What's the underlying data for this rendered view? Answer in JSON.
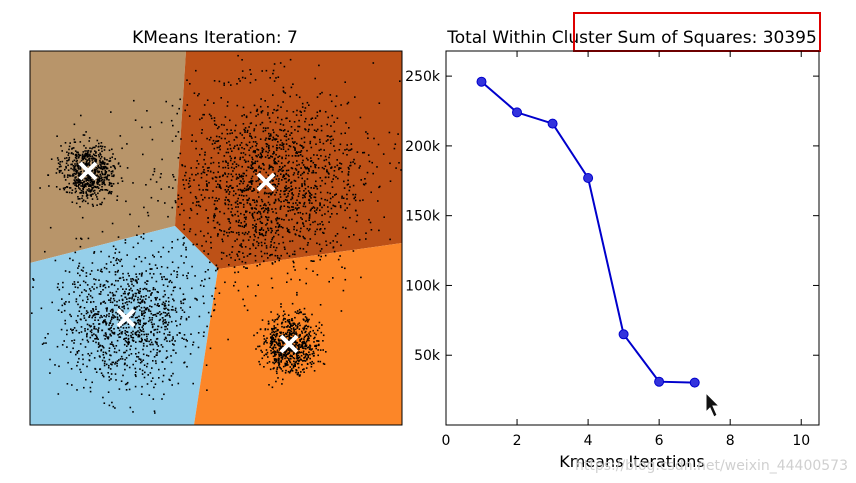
{
  "chart_data": [
    {
      "type": "scatter",
      "title": "KMeans Iteration: 7",
      "regions": [
        {
          "name": "top-left",
          "color": "#b8956a"
        },
        {
          "name": "top-right",
          "color": "#bd5117"
        },
        {
          "name": "bottom-left",
          "color": "#95cfea"
        },
        {
          "name": "bottom-right",
          "color": "#fc8628"
        }
      ],
      "clusters": [
        {
          "centroid_marker": "x",
          "spread": "tight",
          "count": 700
        },
        {
          "centroid_marker": "x",
          "spread": "wide",
          "count": 1700
        },
        {
          "centroid_marker": "x",
          "spread": "wide",
          "count": 1100
        },
        {
          "centroid_marker": "x",
          "spread": "tight",
          "count": 700
        }
      ],
      "point_color": "#000000",
      "centroid_color": "#ffffff",
      "axes_ticks": "none"
    },
    {
      "type": "line",
      "title": "Total Within Cluster Sum of Squares: 30395",
      "xlabel": "Kmeans Iterations",
      "ylabel": "",
      "xlim": [
        0,
        10.5
      ],
      "ylim": [
        0,
        268000
      ],
      "xticks": [
        {
          "value": 0,
          "label": "0"
        },
        {
          "value": 2,
          "label": "2"
        },
        {
          "value": 4,
          "label": "4"
        },
        {
          "value": 6,
          "label": "6"
        },
        {
          "value": 8,
          "label": "8"
        },
        {
          "value": 10,
          "label": "10"
        }
      ],
      "yticks": [
        {
          "value": 50000,
          "label": "50k"
        },
        {
          "value": 100000,
          "label": "100k"
        },
        {
          "value": 150000,
          "label": "150k"
        },
        {
          "value": 200000,
          "label": "200k"
        },
        {
          "value": 250000,
          "label": "250k"
        }
      ],
      "x": [
        1,
        2,
        3,
        4,
        5,
        6,
        7
      ],
      "y": [
        246000,
        224000,
        216000,
        177000,
        65000,
        31000,
        30395
      ],
      "line_color": "#0000cc",
      "marker_color": "#3333dd",
      "grid": false
    }
  ],
  "highlight_box_color": "#dd0000",
  "watermark": "https://blog.csdn.net/weixin_44400573"
}
